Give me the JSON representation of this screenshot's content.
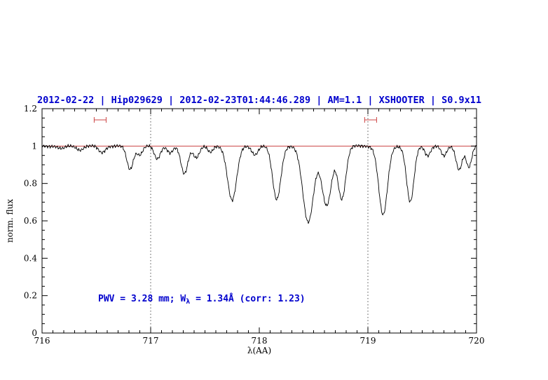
{
  "window": {
    "background": "#ffffff"
  },
  "chart_data": {
    "type": "line",
    "title": "2012-02-22 | Hip029629 | 2012-02-23T01:44:46.289 | AM=1.1 | XSHOOTER | S0.9x11",
    "title_color": "#0000cd",
    "title_parts": {
      "date": "2012-02-22",
      "target": "Hip029629",
      "obs_datetime": "2012-02-23T01:44:46.289",
      "airmass": "AM=1.1",
      "instrument": "XSHOOTER",
      "slit": "S0.9x11"
    },
    "xlabel": "λ(AA)",
    "ylabel": "norm. flux",
    "xlim": [
      716,
      720
    ],
    "ylim": [
      0,
      1.2
    ],
    "x_ticks": [
      {
        "value": 716,
        "label": "716"
      },
      {
        "value": 717,
        "label": "717"
      },
      {
        "value": 718,
        "label": "718"
      },
      {
        "value": 719,
        "label": "719"
      },
      {
        "value": 720,
        "label": "720"
      }
    ],
    "y_ticks": [
      {
        "value": 0,
        "label": "0"
      },
      {
        "value": 0.2,
        "label": "0.2"
      },
      {
        "value": 0.4,
        "label": "0.4"
      },
      {
        "value": 0.6,
        "label": "0.6"
      },
      {
        "value": 0.8,
        "label": "0.8"
      },
      {
        "value": 1,
        "label": "1"
      },
      {
        "value": 1.2,
        "label": "1.2"
      }
    ],
    "x_minor_step": 0.1,
    "y_minor_step": 0.05,
    "grid": false,
    "legend": "none",
    "guides_x": [
      717,
      719
    ],
    "continuum": {
      "level": 1.0,
      "color": "#cc4444"
    },
    "range_markers": {
      "color": "#cc4444",
      "items": [
        {
          "x1": 716.48,
          "x2": 716.59,
          "y": 1.14
        },
        {
          "x1": 718.97,
          "x2": 719.08,
          "y": 1.14
        }
      ]
    },
    "annotation": {
      "pre": "PWV = 3.28 mm; W",
      "sub": "λ",
      "post": " = 1.34Å (corr: 1.23)",
      "color": "#0000cd"
    },
    "measurements": {
      "pwv_mm": 3.28,
      "equivalent_width_A": 1.34,
      "correction_factor": 1.23
    },
    "spectrum_color": "#000000",
    "absorption_lines": [
      {
        "center": 716.18,
        "depth": 0.015,
        "sigma": 0.03
      },
      {
        "center": 716.35,
        "depth": 0.02,
        "sigma": 0.03
      },
      {
        "center": 716.55,
        "depth": 0.035,
        "sigma": 0.03
      },
      {
        "center": 716.81,
        "depth": 0.125,
        "sigma": 0.03
      },
      {
        "center": 716.9,
        "depth": 0.045,
        "sigma": 0.025
      },
      {
        "center": 717.06,
        "depth": 0.07,
        "sigma": 0.028
      },
      {
        "center": 717.18,
        "depth": 0.035,
        "sigma": 0.025
      },
      {
        "center": 717.31,
        "depth": 0.15,
        "sigma": 0.032
      },
      {
        "center": 717.42,
        "depth": 0.06,
        "sigma": 0.028
      },
      {
        "center": 717.55,
        "depth": 0.035,
        "sigma": 0.025
      },
      {
        "center": 717.75,
        "depth": 0.29,
        "sigma": 0.042
      },
      {
        "center": 717.96,
        "depth": 0.045,
        "sigma": 0.028
      },
      {
        "center": 718.16,
        "depth": 0.285,
        "sigma": 0.038
      },
      {
        "center": 718.45,
        "depth": 0.405,
        "sigma": 0.05
      },
      {
        "center": 718.62,
        "depth": 0.32,
        "sigma": 0.045
      },
      {
        "center": 718.76,
        "depth": 0.28,
        "sigma": 0.036
      },
      {
        "center": 719.14,
        "depth": 0.37,
        "sigma": 0.04
      },
      {
        "center": 719.39,
        "depth": 0.3,
        "sigma": 0.034
      },
      {
        "center": 719.55,
        "depth": 0.05,
        "sigma": 0.025
      },
      {
        "center": 719.7,
        "depth": 0.055,
        "sigma": 0.025
      },
      {
        "center": 719.84,
        "depth": 0.125,
        "sigma": 0.028
      },
      {
        "center": 719.93,
        "depth": 0.115,
        "sigma": 0.025
      }
    ],
    "noise_model": {
      "amplitudes": [
        0.006,
        0.004,
        0.0025
      ],
      "frequencies": [
        251.0,
        587.0,
        1123.0
      ],
      "phases": [
        0.0,
        1.7,
        0.5
      ]
    }
  }
}
